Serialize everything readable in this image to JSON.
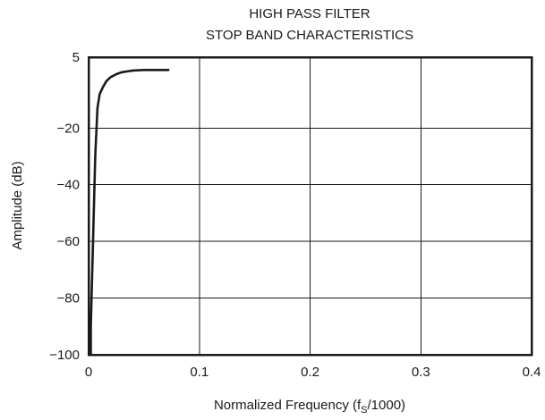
{
  "chart_data": {
    "type": "line",
    "title": "HIGH PASS FILTER",
    "subtitle": "STOP BAND CHARACTERISTICS",
    "xlabel_main": "Normalized Frequency (f",
    "xlabel_sub": "S",
    "xlabel_tail": "/1000)",
    "ylabel": "Amplitude (dB)",
    "xlim": [
      0,
      0.4
    ],
    "ylim": [
      -100,
      5
    ],
    "x_ticks": [
      0,
      0.1,
      0.2,
      0.3,
      0.4
    ],
    "x_tick_labels": [
      "0",
      "0.1",
      "0.2",
      "0.3",
      "0.4"
    ],
    "y_ticks": [
      5,
      -20,
      -40,
      -60,
      -80,
      -100
    ],
    "y_tick_labels": [
      "5",
      "−20",
      "−40",
      "−60",
      "−80",
      "−100"
    ],
    "grid": true,
    "line_color": "#1a1a1a",
    "series": [
      {
        "x": [
          0.002,
          0.002,
          0.003,
          0.004,
          0.005,
          0.006,
          0.008,
          0.01,
          0.013,
          0.016,
          0.02,
          0.025,
          0.03,
          0.035,
          0.04,
          0.05,
          0.06,
          0.072
        ],
        "y": [
          -100,
          -90,
          -75,
          -60,
          -45,
          -30,
          -13,
          -8,
          -5.5,
          -3.5,
          -2,
          -1,
          -0.3,
          0,
          0.3,
          0.5,
          0.5,
          0.5
        ]
      }
    ]
  }
}
